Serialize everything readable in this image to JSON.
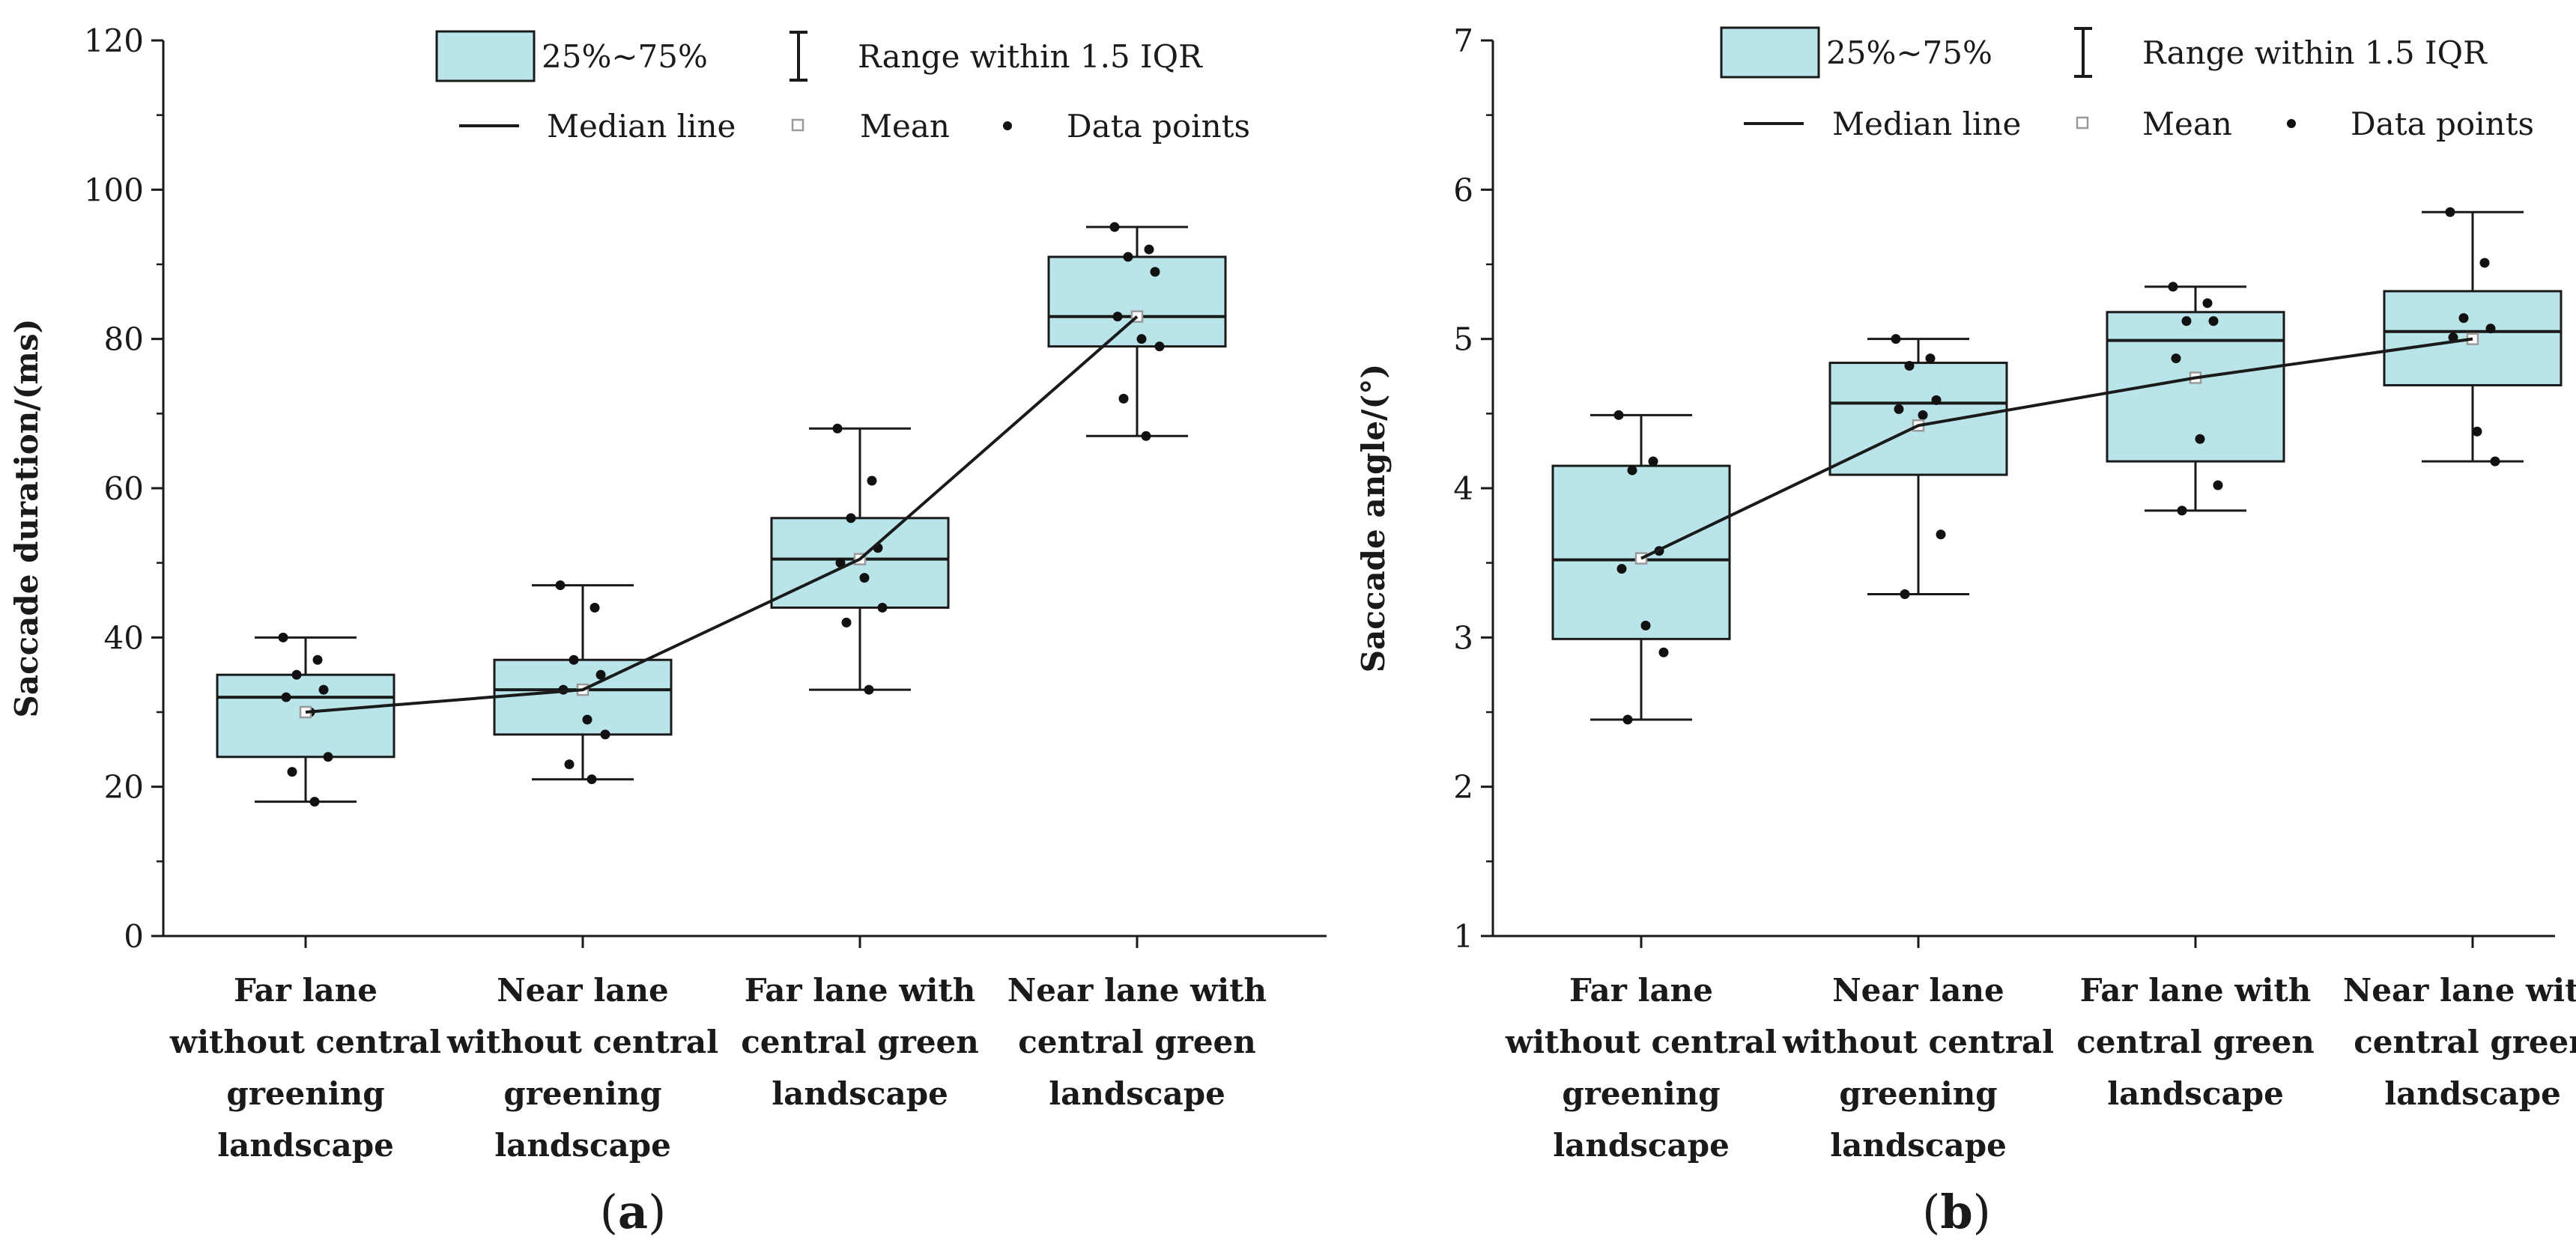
{
  "figure": {
    "panels": [
      "a",
      "b"
    ]
  },
  "legend": {
    "box_label": "25%~75%",
    "range_label": "Range within 1.5 IQR",
    "median_label": "Median line",
    "mean_label": "Mean",
    "points_label": "Data points"
  },
  "colors": {
    "box_fill": "#b9e5ea",
    "stroke": "#1a1a1a",
    "mean_marker": "#9a9a9a"
  },
  "chart_data": [
    {
      "type": "box",
      "panel": "a",
      "panel_label": "a",
      "ylabel": "Saccade duration/(ms)",
      "xlabel": "",
      "ylim": [
        0,
        120
      ],
      "yticks": [
        0,
        20,
        40,
        60,
        80,
        100,
        120
      ],
      "categories": [
        [
          "Far lane",
          "without central",
          "greening",
          "landscape"
        ],
        [
          "Near lane",
          "without central",
          "greening",
          "landscape"
        ],
        [
          "Far lane with",
          "central green",
          "landscape"
        ],
        [
          "Near lane with",
          "central green",
          "landscape"
        ]
      ],
      "boxes": [
        {
          "min": 18,
          "q1": 24,
          "median": 32,
          "q3": 35,
          "max": 40,
          "mean": 30,
          "points": [
            40,
            37,
            35,
            33,
            32,
            30,
            24,
            22,
            18
          ]
        },
        {
          "min": 21,
          "q1": 27,
          "median": 33,
          "q3": 37,
          "max": 47,
          "mean": 33,
          "points": [
            47,
            44,
            37,
            35,
            33,
            29,
            27,
            23,
            21
          ]
        },
        {
          "min": 33,
          "q1": 44,
          "median": 50.5,
          "q3": 56,
          "max": 68,
          "mean": 50.5,
          "points": [
            68,
            61,
            56,
            52,
            50,
            48,
            44,
            42,
            33
          ]
        },
        {
          "min": 67,
          "q1": 79,
          "median": 83,
          "q3": 91,
          "max": 95,
          "mean": 83,
          "points": [
            95,
            92,
            91,
            89,
            83,
            80,
            79,
            72,
            67
          ]
        }
      ]
    },
    {
      "type": "box",
      "panel": "b",
      "panel_label": "b",
      "ylabel": "Saccade angle/(°)",
      "xlabel": "",
      "ylim": [
        1,
        7
      ],
      "yticks": [
        1,
        2,
        3,
        4,
        5,
        6,
        7
      ],
      "categories": [
        [
          "Far lane",
          "without central",
          "greening",
          "landscape"
        ],
        [
          "Near lane",
          "without central",
          "greening",
          "landscape"
        ],
        [
          "Far lane with",
          "central green",
          "landscape"
        ],
        [
          "Near lane with",
          "central green",
          "landscape"
        ]
      ],
      "boxes": [
        {
          "min": 2.45,
          "q1": 2.99,
          "median": 3.52,
          "q3": 4.15,
          "max": 4.49,
          "mean": 3.53,
          "points": [
            4.49,
            4.18,
            4.12,
            3.58,
            3.46,
            3.08,
            2.9,
            2.45
          ]
        },
        {
          "min": 3.29,
          "q1": 4.09,
          "median": 4.57,
          "q3": 4.84,
          "max": 5.0,
          "mean": 4.42,
          "points": [
            5.0,
            4.87,
            4.82,
            4.59,
            4.53,
            4.49,
            3.69,
            3.29
          ]
        },
        {
          "min": 3.85,
          "q1": 4.18,
          "median": 4.99,
          "q3": 5.18,
          "max": 5.35,
          "mean": 4.74,
          "points": [
            5.35,
            5.24,
            5.12,
            5.12,
            4.87,
            4.33,
            4.02,
            3.85
          ]
        },
        {
          "min": 4.18,
          "q1": 4.69,
          "median": 5.05,
          "q3": 5.32,
          "max": 5.85,
          "mean": 5.0,
          "points": [
            5.85,
            5.51,
            5.14,
            5.07,
            5.01,
            4.38,
            4.18
          ]
        }
      ]
    }
  ]
}
